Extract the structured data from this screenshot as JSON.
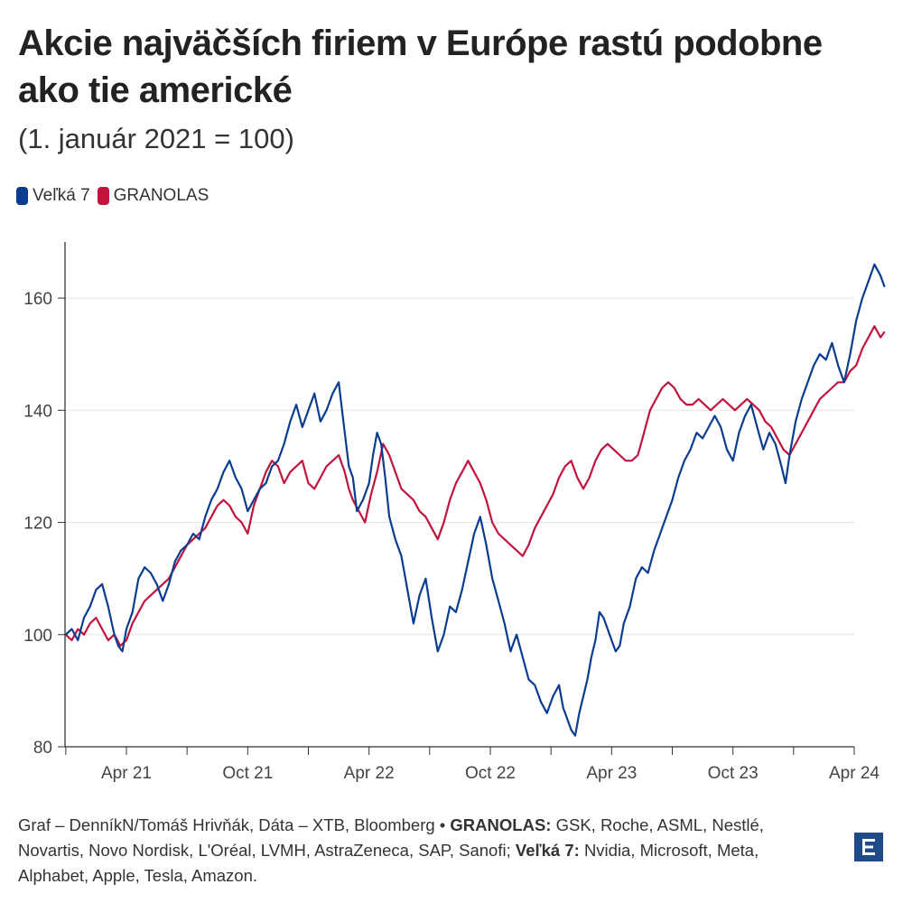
{
  "header": {
    "title": "Akcie najväčších firiem v Európe rastú podobne ako tie americké",
    "subtitle": "(1. január 2021 = 100)"
  },
  "legend": [
    {
      "label": "Veľká 7",
      "color": "#0a3d8f"
    },
    {
      "label": "GRANOLAS",
      "color": "#c0143c"
    }
  ],
  "footer": {
    "source": "Graf – DenníkN/Tomáš Hrivňák, Dáta – XTB, Bloomberg •",
    "granolas_label": "GRANOLAS:",
    "granolas_list": "GSK, Roche, ASML, Nestlé, Novartis, Novo Nordisk, L'Oréal, LVMH, AstraZeneca, SAP, Sanofi;",
    "velka7_label": "Veľká 7:",
    "velka7_list": "Nvidia, Microsoft, Meta, Alphabet, Apple, Tesla, Amazon."
  },
  "logo": {
    "icon": "e-logo-icon",
    "color": "#1f4a8a"
  },
  "chart_data": {
    "type": "line",
    "title": "Akcie najväčších firiem v Európe rastú podobne ako tie americké",
    "subtitle": "(1. január 2021 = 100)",
    "xlabel": "",
    "ylabel": "",
    "ylim": [
      80,
      170
    ],
    "yticks": [
      80,
      100,
      120,
      140,
      160
    ],
    "xticks": [
      {
        "label": "Apr 21",
        "month": 3
      },
      {
        "label": "Oct 21",
        "month": 9
      },
      {
        "label": "Apr 22",
        "month": 15
      },
      {
        "label": "Oct 22",
        "month": 21
      },
      {
        "label": "Apr 23",
        "month": 27
      },
      {
        "label": "Oct 23",
        "month": 33
      },
      {
        "label": "Apr 24",
        "month": 39
      }
    ],
    "xlim": [
      0,
      39
    ],
    "grid": true,
    "series": [
      {
        "name": "Veľká 7",
        "color": "#0a3d8f",
        "points": [
          [
            0,
            100
          ],
          [
            0.3,
            101
          ],
          [
            0.6,
            99
          ],
          [
            0.9,
            103
          ],
          [
            1.2,
            105
          ],
          [
            1.5,
            108
          ],
          [
            1.8,
            109
          ],
          [
            2.1,
            105
          ],
          [
            2.4,
            100
          ],
          [
            2.6,
            98
          ],
          [
            2.8,
            97
          ],
          [
            3.0,
            101
          ],
          [
            3.3,
            104
          ],
          [
            3.6,
            110
          ],
          [
            3.9,
            112
          ],
          [
            4.2,
            111
          ],
          [
            4.5,
            109
          ],
          [
            4.8,
            106
          ],
          [
            5.1,
            109
          ],
          [
            5.4,
            113
          ],
          [
            5.7,
            115
          ],
          [
            6.0,
            116
          ],
          [
            6.3,
            118
          ],
          [
            6.6,
            117
          ],
          [
            6.9,
            121
          ],
          [
            7.2,
            124
          ],
          [
            7.5,
            126
          ],
          [
            7.8,
            129
          ],
          [
            8.1,
            131
          ],
          [
            8.4,
            128
          ],
          [
            8.7,
            126
          ],
          [
            9.0,
            122
          ],
          [
            9.3,
            124
          ],
          [
            9.6,
            126
          ],
          [
            9.9,
            127
          ],
          [
            10.2,
            130
          ],
          [
            10.5,
            131
          ],
          [
            10.8,
            134
          ],
          [
            11.1,
            138
          ],
          [
            11.4,
            141
          ],
          [
            11.7,
            137
          ],
          [
            12.0,
            140
          ],
          [
            12.3,
            143
          ],
          [
            12.6,
            138
          ],
          [
            12.9,
            140
          ],
          [
            13.2,
            143
          ],
          [
            13.5,
            145
          ],
          [
            13.8,
            136
          ],
          [
            14.0,
            130
          ],
          [
            14.2,
            128
          ],
          [
            14.4,
            122
          ],
          [
            14.7,
            124
          ],
          [
            15.0,
            127
          ],
          [
            15.2,
            132
          ],
          [
            15.4,
            136
          ],
          [
            15.6,
            134
          ],
          [
            15.8,
            128
          ],
          [
            16.0,
            121
          ],
          [
            16.3,
            117
          ],
          [
            16.6,
            114
          ],
          [
            16.9,
            108
          ],
          [
            17.2,
            102
          ],
          [
            17.5,
            107
          ],
          [
            17.8,
            110
          ],
          [
            18.1,
            103
          ],
          [
            18.4,
            97
          ],
          [
            18.7,
            100
          ],
          [
            19.0,
            105
          ],
          [
            19.3,
            104
          ],
          [
            19.6,
            108
          ],
          [
            19.9,
            113
          ],
          [
            20.2,
            118
          ],
          [
            20.5,
            121
          ],
          [
            20.8,
            116
          ],
          [
            21.1,
            110
          ],
          [
            21.4,
            106
          ],
          [
            21.7,
            102
          ],
          [
            22.0,
            97
          ],
          [
            22.3,
            100
          ],
          [
            22.6,
            96
          ],
          [
            22.9,
            92
          ],
          [
            23.2,
            91
          ],
          [
            23.5,
            88
          ],
          [
            23.8,
            86
          ],
          [
            24.1,
            89
          ],
          [
            24.4,
            91
          ],
          [
            24.6,
            87
          ],
          [
            24.8,
            85
          ],
          [
            25.0,
            83
          ],
          [
            25.2,
            82
          ],
          [
            25.4,
            86
          ],
          [
            25.6,
            89
          ],
          [
            25.8,
            92
          ],
          [
            26.0,
            96
          ],
          [
            26.2,
            99
          ],
          [
            26.4,
            104
          ],
          [
            26.6,
            103
          ],
          [
            26.8,
            101
          ],
          [
            27.0,
            99
          ],
          [
            27.2,
            97
          ],
          [
            27.4,
            98
          ],
          [
            27.6,
            102
          ],
          [
            27.9,
            105
          ],
          [
            28.2,
            110
          ],
          [
            28.5,
            112
          ],
          [
            28.8,
            111
          ],
          [
            29.1,
            115
          ],
          [
            29.4,
            118
          ],
          [
            29.7,
            121
          ],
          [
            30.0,
            124
          ],
          [
            30.3,
            128
          ],
          [
            30.6,
            131
          ],
          [
            30.9,
            133
          ],
          [
            31.2,
            136
          ],
          [
            31.5,
            135
          ],
          [
            31.8,
            137
          ],
          [
            32.1,
            139
          ],
          [
            32.4,
            137
          ],
          [
            32.7,
            133
          ],
          [
            33.0,
            131
          ],
          [
            33.3,
            136
          ],
          [
            33.6,
            139
          ],
          [
            33.9,
            141
          ],
          [
            34.2,
            137
          ],
          [
            34.5,
            133
          ],
          [
            34.8,
            136
          ],
          [
            35.1,
            134
          ],
          [
            35.4,
            130
          ],
          [
            35.6,
            127
          ],
          [
            35.8,
            132
          ],
          [
            36.1,
            138
          ],
          [
            36.4,
            142
          ],
          [
            36.7,
            145
          ],
          [
            37.0,
            148
          ],
          [
            37.3,
            150
          ],
          [
            37.6,
            149
          ],
          [
            37.9,
            152
          ],
          [
            38.2,
            148
          ],
          [
            38.5,
            145
          ],
          [
            38.8,
            150
          ],
          [
            39.1,
            156
          ],
          [
            39.4,
            160
          ],
          [
            39.7,
            163
          ],
          [
            40.0,
            166
          ],
          [
            40.3,
            164
          ],
          [
            40.5,
            162
          ]
        ]
      },
      {
        "name": "GRANOLAS",
        "color": "#c0143c",
        "points": [
          [
            0,
            100
          ],
          [
            0.3,
            99
          ],
          [
            0.6,
            101
          ],
          [
            0.9,
            100
          ],
          [
            1.2,
            102
          ],
          [
            1.5,
            103
          ],
          [
            1.8,
            101
          ],
          [
            2.1,
            99
          ],
          [
            2.4,
            100
          ],
          [
            2.7,
            98
          ],
          [
            3.0,
            99
          ],
          [
            3.3,
            102
          ],
          [
            3.6,
            104
          ],
          [
            3.9,
            106
          ],
          [
            4.2,
            107
          ],
          [
            4.5,
            108
          ],
          [
            4.8,
            109
          ],
          [
            5.1,
            110
          ],
          [
            5.4,
            112
          ],
          [
            5.7,
            114
          ],
          [
            6.0,
            116
          ],
          [
            6.3,
            117
          ],
          [
            6.6,
            118
          ],
          [
            6.9,
            119
          ],
          [
            7.2,
            121
          ],
          [
            7.5,
            123
          ],
          [
            7.8,
            124
          ],
          [
            8.1,
            123
          ],
          [
            8.4,
            121
          ],
          [
            8.7,
            120
          ],
          [
            9.0,
            118
          ],
          [
            9.3,
            123
          ],
          [
            9.6,
            126
          ],
          [
            9.9,
            129
          ],
          [
            10.2,
            131
          ],
          [
            10.5,
            130
          ],
          [
            10.8,
            127
          ],
          [
            11.1,
            129
          ],
          [
            11.4,
            130
          ],
          [
            11.7,
            131
          ],
          [
            12.0,
            127
          ],
          [
            12.3,
            126
          ],
          [
            12.6,
            128
          ],
          [
            12.9,
            130
          ],
          [
            13.2,
            131
          ],
          [
            13.5,
            132
          ],
          [
            13.8,
            129
          ],
          [
            14.0,
            126
          ],
          [
            14.2,
            124
          ],
          [
            14.5,
            122
          ],
          [
            14.8,
            120
          ],
          [
            15.1,
            125
          ],
          [
            15.4,
            129
          ],
          [
            15.7,
            134
          ],
          [
            16.0,
            132
          ],
          [
            16.3,
            129
          ],
          [
            16.6,
            126
          ],
          [
            16.9,
            125
          ],
          [
            17.2,
            124
          ],
          [
            17.5,
            122
          ],
          [
            17.8,
            121
          ],
          [
            18.1,
            119
          ],
          [
            18.4,
            117
          ],
          [
            18.7,
            120
          ],
          [
            19.0,
            124
          ],
          [
            19.3,
            127
          ],
          [
            19.6,
            129
          ],
          [
            19.9,
            131
          ],
          [
            20.2,
            129
          ],
          [
            20.5,
            127
          ],
          [
            20.8,
            124
          ],
          [
            21.1,
            120
          ],
          [
            21.4,
            118
          ],
          [
            21.7,
            117
          ],
          [
            22.0,
            116
          ],
          [
            22.3,
            115
          ],
          [
            22.6,
            114
          ],
          [
            22.9,
            116
          ],
          [
            23.2,
            119
          ],
          [
            23.5,
            121
          ],
          [
            23.8,
            123
          ],
          [
            24.1,
            125
          ],
          [
            24.4,
            128
          ],
          [
            24.7,
            130
          ],
          [
            25.0,
            131
          ],
          [
            25.3,
            128
          ],
          [
            25.6,
            126
          ],
          [
            25.9,
            128
          ],
          [
            26.2,
            131
          ],
          [
            26.5,
            133
          ],
          [
            26.8,
            134
          ],
          [
            27.1,
            133
          ],
          [
            27.4,
            132
          ],
          [
            27.7,
            131
          ],
          [
            28.0,
            131
          ],
          [
            28.3,
            132
          ],
          [
            28.6,
            136
          ],
          [
            28.9,
            140
          ],
          [
            29.2,
            142
          ],
          [
            29.5,
            144
          ],
          [
            29.8,
            145
          ],
          [
            30.1,
            144
          ],
          [
            30.4,
            142
          ],
          [
            30.7,
            141
          ],
          [
            31.0,
            141
          ],
          [
            31.3,
            142
          ],
          [
            31.6,
            141
          ],
          [
            31.9,
            140
          ],
          [
            32.2,
            141
          ],
          [
            32.5,
            142
          ],
          [
            32.8,
            141
          ],
          [
            33.1,
            140
          ],
          [
            33.4,
            141
          ],
          [
            33.7,
            142
          ],
          [
            34.0,
            141
          ],
          [
            34.3,
            140
          ],
          [
            34.6,
            138
          ],
          [
            34.9,
            137
          ],
          [
            35.2,
            135
          ],
          [
            35.5,
            133
          ],
          [
            35.8,
            132
          ],
          [
            36.1,
            134
          ],
          [
            36.4,
            136
          ],
          [
            36.7,
            138
          ],
          [
            37.0,
            140
          ],
          [
            37.3,
            142
          ],
          [
            37.6,
            143
          ],
          [
            37.9,
            144
          ],
          [
            38.2,
            145
          ],
          [
            38.5,
            145
          ],
          [
            38.8,
            147
          ],
          [
            39.1,
            148
          ],
          [
            39.4,
            151
          ],
          [
            39.7,
            153
          ],
          [
            40.0,
            155
          ],
          [
            40.3,
            153
          ],
          [
            40.5,
            154
          ]
        ]
      }
    ]
  }
}
